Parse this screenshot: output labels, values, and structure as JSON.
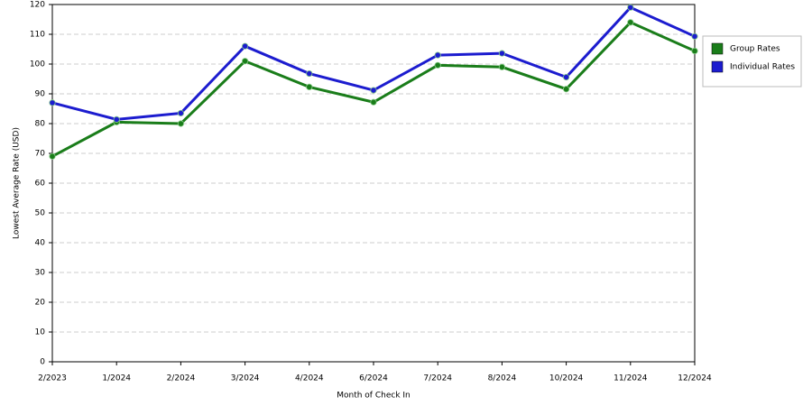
{
  "chart_data": {
    "type": "line",
    "x_label": "Month of Check In",
    "y_label": "Lowest Average Rate (USD)",
    "categories": [
      "2/2023",
      "1/2024",
      "2/2024",
      "3/2024",
      "4/2024",
      "6/2024",
      "7/2024",
      "8/2024",
      "10/2024",
      "11/2024",
      "12/2024"
    ],
    "series": [
      {
        "name": "Group Rates",
        "color": "#1a7d1a",
        "values": [
          69,
          80.5,
          80,
          101,
          92.3,
          87.2,
          99.6,
          99,
          91.6,
          114,
          104.4
        ]
      },
      {
        "name": "Individual Rates",
        "color": "#1c1ccf",
        "values": [
          87,
          81.4,
          83.5,
          106,
          96.8,
          91.2,
          103,
          103.6,
          95.6,
          119,
          109.3
        ]
      }
    ],
    "ylim": [
      0,
      120
    ],
    "yticks": [
      0,
      10,
      20,
      30,
      40,
      50,
      60,
      70,
      80,
      90,
      100,
      110,
      120
    ],
    "grid": true,
    "legend": "top-right"
  }
}
